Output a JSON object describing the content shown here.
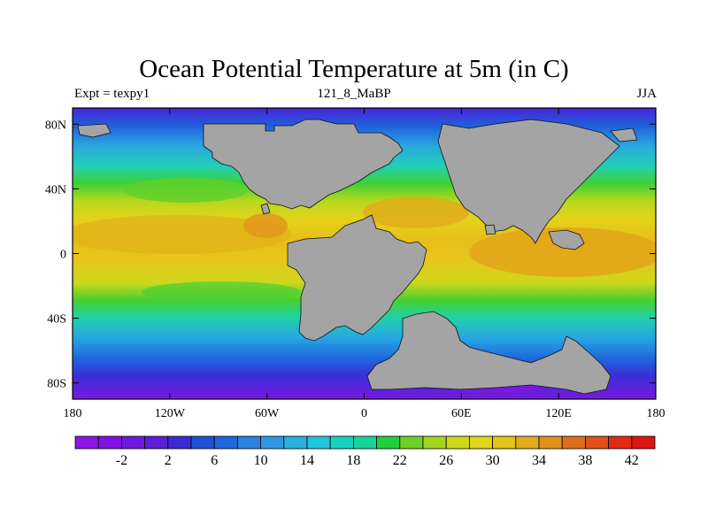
{
  "header": {
    "title": "Ocean Potential Temperature at 5m (in C)",
    "left_subtitle": "Expt = texpy1",
    "center_subtitle": "121_8_MaBP",
    "right_subtitle": "JJA"
  },
  "map": {
    "projection": "cylindrical equidistant",
    "lon_range": [
      -180,
      180
    ],
    "lat_range": [
      -90,
      90
    ],
    "land_color": "#a4a4a4",
    "lon_ticks": [
      {
        "value": -180,
        "label": "180"
      },
      {
        "value": -120,
        "label": "120W"
      },
      {
        "value": -60,
        "label": "60W"
      },
      {
        "value": 0,
        "label": "0"
      },
      {
        "value": 60,
        "label": "60E"
      },
      {
        "value": 120,
        "label": "120E"
      },
      {
        "value": 180,
        "label": "180"
      }
    ],
    "lat_ticks": [
      {
        "value": 80,
        "label": "80N"
      },
      {
        "value": 40,
        "label": "40N"
      },
      {
        "value": 0,
        "label": "0"
      },
      {
        "value": -40,
        "label": "40S"
      },
      {
        "value": -80,
        "label": "80S"
      }
    ]
  },
  "colorbar": {
    "colors": [
      "#8f14e6",
      "#8012e3",
      "#6f1ae0",
      "#5c1ed9",
      "#3c2ad6",
      "#2050d9",
      "#1f67dd",
      "#2a82e0",
      "#2e98e2",
      "#29b0e0",
      "#20c4dc",
      "#18d2c0",
      "#18d29a",
      "#1fcf3c",
      "#6cd226",
      "#a3d71e",
      "#cfd71c",
      "#e2d61c",
      "#e5c318",
      "#e2ac1a",
      "#e1921b",
      "#dc6e1c",
      "#e05018",
      "#e32a14",
      "#de1410"
    ],
    "labels": [
      {
        "value": -2,
        "label": "-2"
      },
      {
        "value": 2,
        "label": "2"
      },
      {
        "value": 6,
        "label": "6"
      },
      {
        "value": 10,
        "label": "10"
      },
      {
        "value": 14,
        "label": "14"
      },
      {
        "value": 18,
        "label": "18"
      },
      {
        "value": 22,
        "label": "22"
      },
      {
        "value": 26,
        "label": "26"
      },
      {
        "value": 30,
        "label": "30"
      },
      {
        "value": 34,
        "label": "34"
      },
      {
        "value": 38,
        "label": "38"
      },
      {
        "value": 42,
        "label": "42"
      }
    ]
  }
}
